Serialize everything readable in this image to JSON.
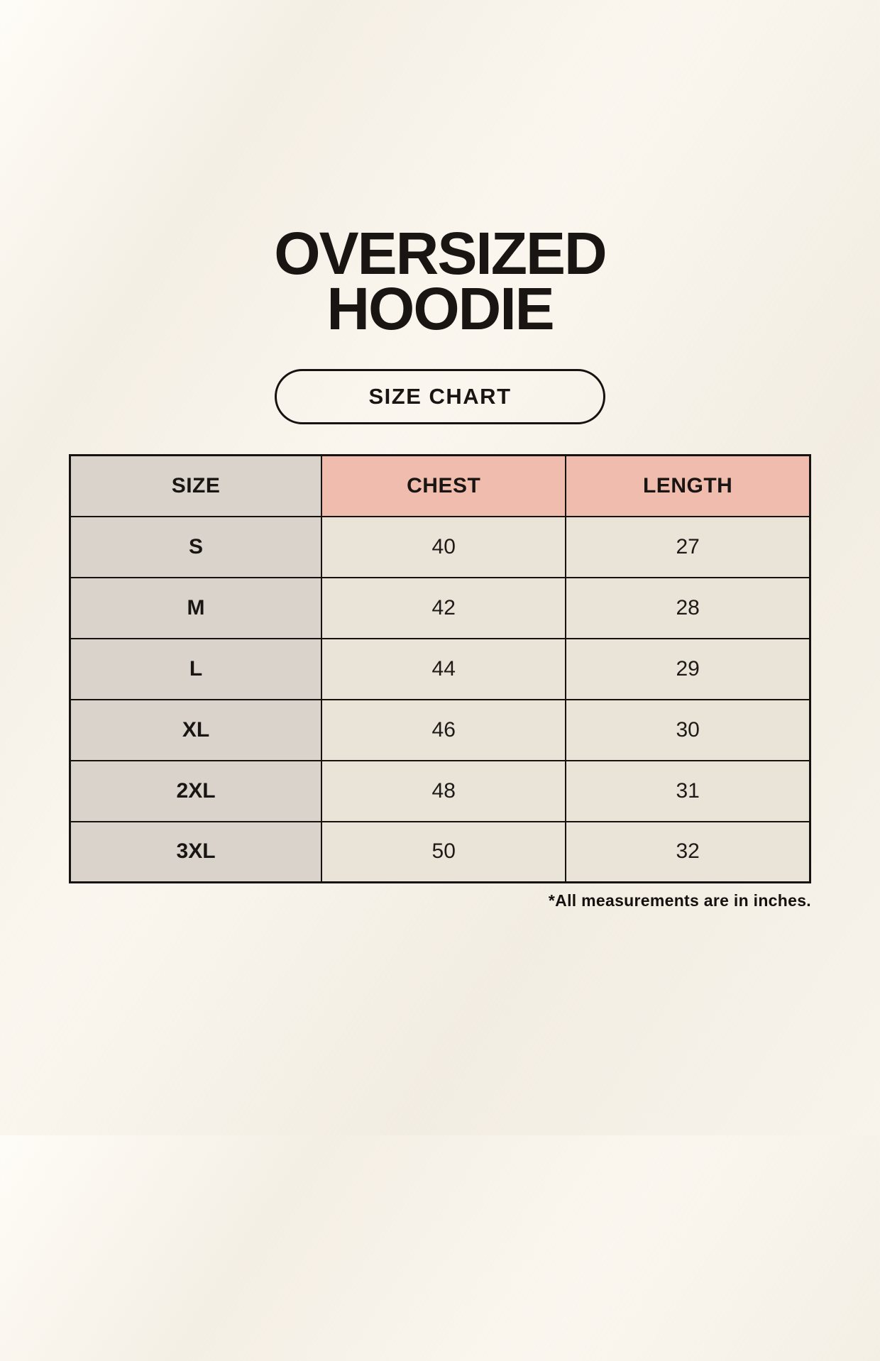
{
  "header": {
    "title_line1": "OVERSIZED",
    "title_line2": "HOODIE",
    "button_label": "SIZE CHART"
  },
  "footer": {
    "note": "*All measurements are in inches."
  },
  "colors": {
    "page_background": "#f6f1e8",
    "text": "#181512",
    "table_border": "#151210",
    "header_accent_pink": "#efbcae",
    "size_column_background": "#dad3cc",
    "data_cell_background": "#eae3d7"
  },
  "chart_data": {
    "type": "table",
    "columns": [
      "SIZE",
      "CHEST",
      "LENGTH"
    ],
    "units_note": "*All measurements are in inches.",
    "rows": [
      {
        "size": "S",
        "chest": 40,
        "length": 27
      },
      {
        "size": "M",
        "chest": 42,
        "length": 28
      },
      {
        "size": "L",
        "chest": 44,
        "length": 29
      },
      {
        "size": "XL",
        "chest": 46,
        "length": 30
      },
      {
        "size": "2XL",
        "chest": 48,
        "length": 31
      },
      {
        "size": "3XL",
        "chest": 50,
        "length": 32
      }
    ]
  }
}
